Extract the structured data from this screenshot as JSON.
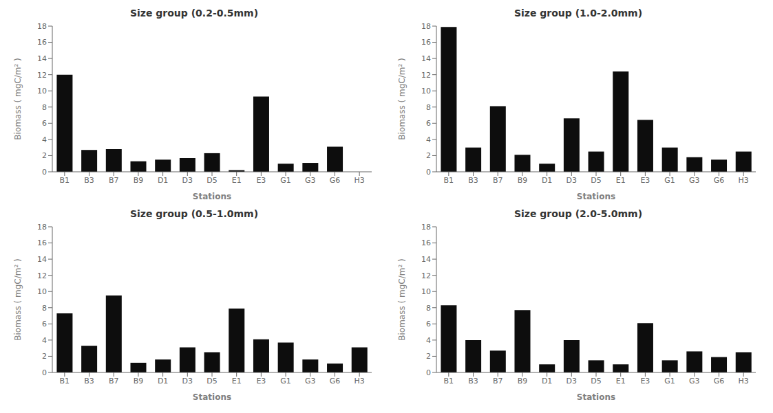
{
  "chart_data": [
    {
      "type": "bar",
      "title": "Size group (0.2-0.5mm)",
      "xlabel": "Stations",
      "ylabel": "Biomass ( mgC/m² )",
      "categories": [
        "B1",
        "B3",
        "B7",
        "B9",
        "D1",
        "D3",
        "D5",
        "E1",
        "E3",
        "G1",
        "G3",
        "G6",
        "H3"
      ],
      "values": [
        12.0,
        2.7,
        2.8,
        1.3,
        1.5,
        1.7,
        2.3,
        0.2,
        9.3,
        1.0,
        1.1,
        3.1,
        0.0
      ],
      "color": "#0d0d0d",
      "ylim": [
        0,
        18
      ],
      "yticks": [
        0,
        2,
        4,
        6,
        8,
        10,
        12,
        14,
        16,
        18
      ],
      "grid": false
    },
    {
      "type": "bar",
      "title": "Size group (1.0-2.0mm)",
      "xlabel": "Stations",
      "ylabel": "Biomass ( mgC/m² )",
      "categories": [
        "B1",
        "B3",
        "B7",
        "B9",
        "D1",
        "D3",
        "D5",
        "E1",
        "E3",
        "G1",
        "G3",
        "G6",
        "H3"
      ],
      "values": [
        17.9,
        3.0,
        8.1,
        2.1,
        1.0,
        6.6,
        2.5,
        12.4,
        6.4,
        3.0,
        1.8,
        1.5,
        2.5
      ],
      "color": "#0d0d0d",
      "ylim": [
        0,
        18
      ],
      "yticks": [
        0,
        2,
        4,
        6,
        8,
        10,
        12,
        14,
        16,
        18
      ],
      "grid": false
    },
    {
      "type": "bar",
      "title": "Size group (0.5-1.0mm)",
      "xlabel": "Stations",
      "ylabel": "Biomass ( mgC/m² )",
      "categories": [
        "B1",
        "B3",
        "B7",
        "B9",
        "D1",
        "D3",
        "D5",
        "E1",
        "E3",
        "G1",
        "G3",
        "G6",
        "H3"
      ],
      "values": [
        7.3,
        3.3,
        9.5,
        1.2,
        1.6,
        3.1,
        2.5,
        7.9,
        4.1,
        3.7,
        1.6,
        1.1,
        3.1
      ],
      "color": "#0d0d0d",
      "ylim": [
        0,
        18
      ],
      "yticks": [
        0,
        2,
        4,
        6,
        8,
        10,
        12,
        14,
        16,
        18
      ],
      "grid": false
    },
    {
      "type": "bar",
      "title": "Size group (2.0-5.0mm)",
      "xlabel": "Stations",
      "ylabel": "Biomass ( mgC/m² )",
      "categories": [
        "B1",
        "B3",
        "B7",
        "B9",
        "D1",
        "D3",
        "D5",
        "E1",
        "E3",
        "G1",
        "G3",
        "G6",
        "H3"
      ],
      "values": [
        8.3,
        4.0,
        2.7,
        7.7,
        1.0,
        4.0,
        1.5,
        1.0,
        6.1,
        1.5,
        2.6,
        1.9,
        2.5
      ],
      "color": "#0d0d0d",
      "ylim": [
        0,
        18
      ],
      "yticks": [
        0,
        2,
        4,
        6,
        8,
        10,
        12,
        14,
        16,
        18
      ],
      "grid": false
    }
  ]
}
